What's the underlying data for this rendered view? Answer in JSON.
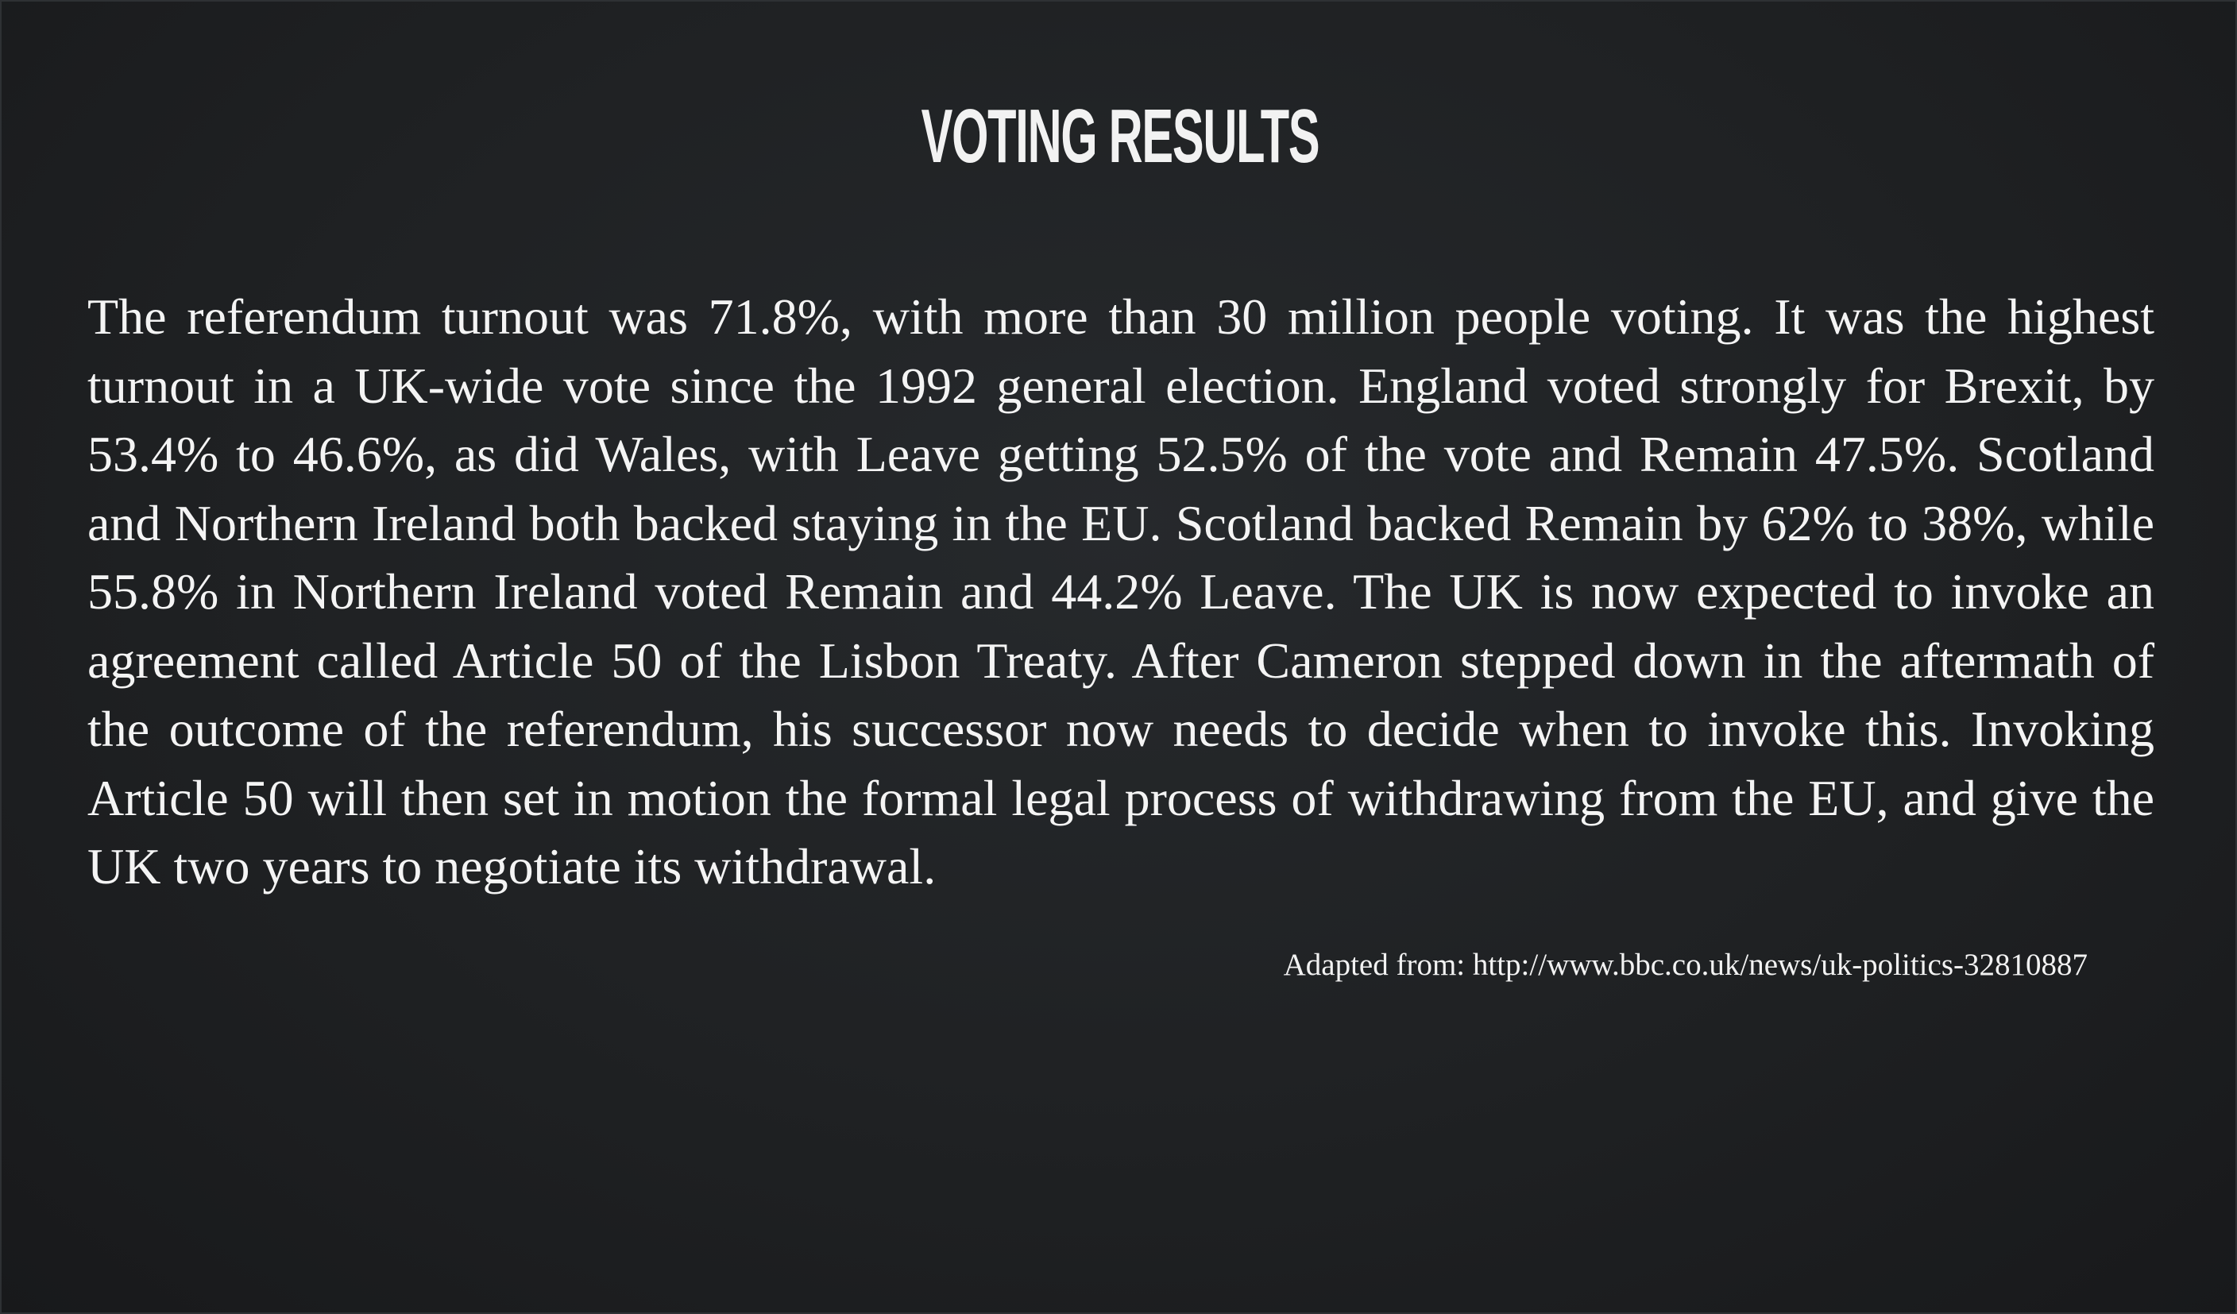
{
  "slide": {
    "title": "VOTING RESULTS",
    "body": "The referendum turnout was 71.8%, with more than 30 million people voting. It was the highest turnout in a UK-wide vote since the 1992 general election. England voted strongly for Brexit, by 53.4% to 46.6%, as did Wales, with Leave getting 52.5% of the vote and Remain 47.5%. Scotland and Northern Ireland both backed staying in the EU. Scotland backed Remain by 62% to 38%, while 55.8% in Northern Ireland voted Remain and 44.2% Leave. The UK is now expected to invoke an agreement called Article 50 of the Lisbon Treaty. After Cameron stepped down in the aftermath of the outcome of the referendum, his successor now needs to decide when to invoke this. Invoking Article 50 will then set in motion the formal legal process of withdrawing from the EU, and give the UK two years to negotiate its withdrawal.",
    "source": "Adapted from: http://www.bbc.co.uk/news/uk-politics-32810887"
  },
  "colors": {
    "background": "#1f2123",
    "text": "#f4f4f4"
  }
}
